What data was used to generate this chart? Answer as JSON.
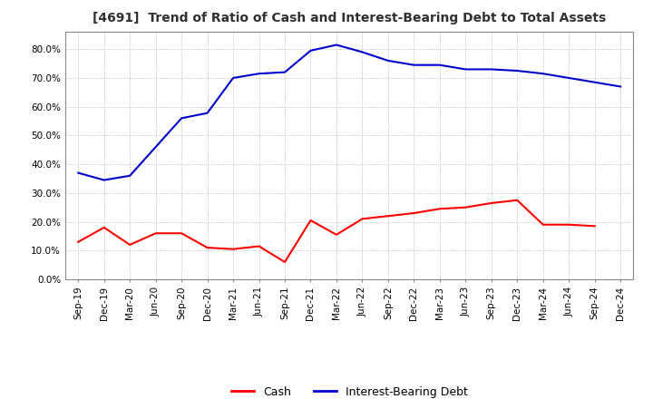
{
  "title": "[4691]  Trend of Ratio of Cash and Interest-Bearing Debt to Total Assets",
  "ylim": [
    0.0,
    0.86
  ],
  "yticks": [
    0.0,
    0.1,
    0.2,
    0.3,
    0.4,
    0.5,
    0.6,
    0.7,
    0.8
  ],
  "x_labels": [
    "Sep-19",
    "Dec-19",
    "Mar-20",
    "Jun-20",
    "Sep-20",
    "Dec-20",
    "Mar-21",
    "Jun-21",
    "Sep-21",
    "Dec-21",
    "Mar-22",
    "Jun-22",
    "Sep-22",
    "Dec-22",
    "Mar-23",
    "Jun-23",
    "Sep-23",
    "Dec-23",
    "Mar-24",
    "Jun-24",
    "Sep-24",
    "Dec-24"
  ],
  "cash": [
    0.13,
    0.18,
    0.12,
    0.16,
    0.16,
    0.11,
    0.105,
    0.115,
    0.06,
    0.205,
    0.155,
    0.21,
    0.22,
    0.23,
    0.245,
    0.25,
    0.265,
    0.275,
    0.19,
    0.19,
    0.185,
    null
  ],
  "interest_bearing_debt": [
    0.37,
    0.345,
    0.36,
    0.46,
    0.56,
    0.578,
    0.7,
    0.715,
    0.72,
    0.795,
    0.815,
    0.79,
    0.76,
    0.745,
    0.745,
    0.73,
    0.73,
    0.725,
    0.715,
    0.7,
    0.685,
    0.67
  ],
  "cash_color": "#ff0000",
  "debt_color": "#0000cc",
  "background_color": "#ffffff",
  "grid_color": "#aaaaaa",
  "title_color": "#303030",
  "legend_cash": "Cash",
  "legend_debt": "Interest-Bearing Debt"
}
